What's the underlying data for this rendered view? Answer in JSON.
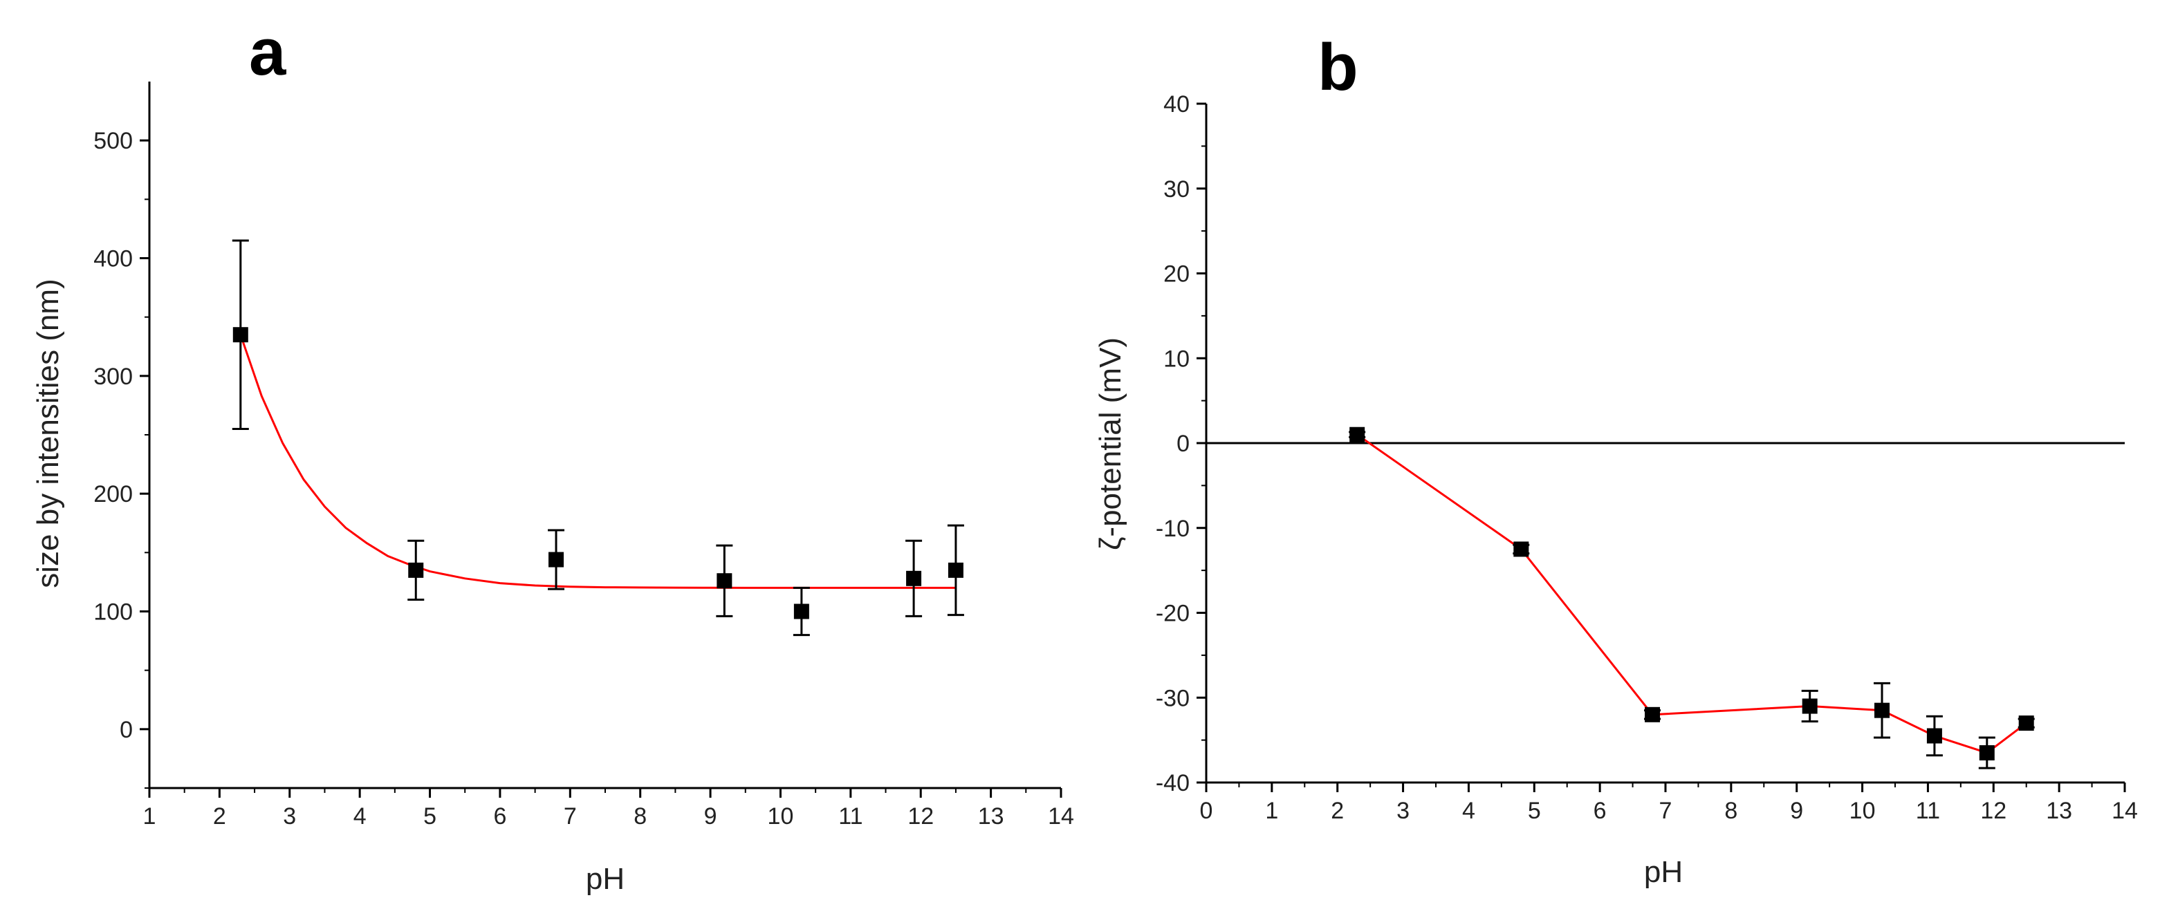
{
  "chart_data": [
    {
      "type": "scatter",
      "panel_label": "a",
      "xlabel": "pH",
      "ylabel": "size by intensities (nm)",
      "xlim": [
        1,
        14
      ],
      "ylim": [
        -50,
        550
      ],
      "xticks": [
        "1",
        "2",
        "3",
        "4",
        "5",
        "6",
        "7",
        "8",
        "9",
        "10",
        "11",
        "12",
        "13",
        "14"
      ],
      "yticks": [
        "0",
        "100",
        "200",
        "300",
        "400",
        "500"
      ],
      "series": [
        {
          "name": "size",
          "x": [
            2.3,
            4.8,
            6.8,
            9.2,
            10.3,
            11.9,
            12.5
          ],
          "y": [
            335,
            135,
            144,
            126,
            100,
            128,
            135
          ],
          "err": [
            80,
            25,
            25,
            30,
            20,
            32,
            38
          ]
        }
      ],
      "fit": {
        "name": "exponential fit",
        "color": "#ff0000",
        "x": [
          2.3,
          2.6,
          2.9,
          3.2,
          3.5,
          3.8,
          4.1,
          4.4,
          4.7,
          5.0,
          5.5,
          6.0,
          6.5,
          7.0,
          7.5,
          8.0,
          8.5,
          9.0,
          9.5,
          10.0,
          10.5,
          11.0,
          11.5,
          12.0,
          12.5
        ],
        "y": [
          335,
          283,
          243,
          212,
          189,
          171,
          158,
          147,
          140,
          134,
          128,
          124,
          122,
          121,
          120.5,
          120.3,
          120.2,
          120.1,
          120.05,
          120.03,
          120.02,
          120.01,
          120.0,
          120.0,
          120.0
        ]
      },
      "marker_color": "#000000"
    },
    {
      "type": "line",
      "panel_label": "b",
      "xlabel": "pH",
      "ylabel": "ζ-potential (mV)",
      "xlim": [
        0,
        14
      ],
      "ylim": [
        -40,
        40
      ],
      "xticks": [
        "0",
        "1",
        "2",
        "3",
        "4",
        "5",
        "6",
        "7",
        "8",
        "9",
        "10",
        "11",
        "12",
        "13",
        "14"
      ],
      "yticks": [
        "-40",
        "-30",
        "-20",
        "-10",
        "0",
        "10",
        "20",
        "30",
        "40"
      ],
      "zero_line": true,
      "series": [
        {
          "name": "zeta",
          "x": [
            2.3,
            4.8,
            6.8,
            9.2,
            10.3,
            11.1,
            11.9,
            12.5
          ],
          "y": [
            1,
            -12.5,
            -32,
            -31,
            -31.5,
            -34.5,
            -36.5,
            -33
          ],
          "err": [
            0.3,
            0.5,
            0.5,
            1.8,
            3.2,
            2.3,
            1.8,
            0.5
          ]
        }
      ],
      "line_color": "#ff0000",
      "marker_color": "#000000"
    }
  ]
}
